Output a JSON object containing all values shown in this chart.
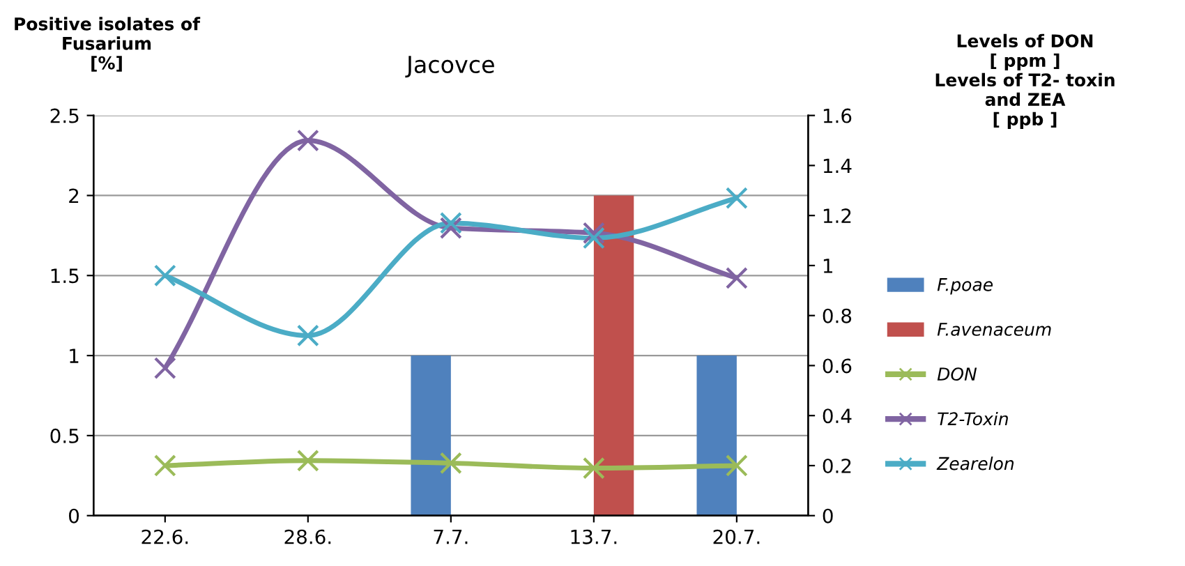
{
  "chart_data": {
    "type": "bar",
    "title": "Jacovce",
    "ylabel": "Positive isolates of\nFusarium\n[%]",
    "y2label": "Levels of DON\n[ ppm ]\nLevels of T2- toxin\nand ZEA\n[ ppb ]",
    "categories": [
      "22.6.",
      "28.6.",
      "7.7.",
      "13.7.",
      "20.7."
    ],
    "series": [
      {
        "name": "F.poae",
        "color": "#4f81bd",
        "values": [
          null,
          null,
          1,
          null,
          1
        ]
      },
      {
        "name": "F.avenaceum",
        "color": "#c0504d",
        "values": [
          null,
          null,
          null,
          2,
          null
        ]
      },
      {
        "name": "DON",
        "type": "line",
        "axis": "y2",
        "color": "#9bbb59",
        "values": [
          0.2,
          0.22,
          0.21,
          0.19,
          0.2
        ]
      },
      {
        "name": "T2-Toxin",
        "type": "line",
        "axis": "y2",
        "color": "#8064a2",
        "values": [
          0.59,
          1.5,
          1.15,
          1.13,
          0.95
        ]
      },
      {
        "name": "Zearelon",
        "type": "line",
        "axis": "y2",
        "color": "#4bacc6",
        "values": [
          0.96,
          0.72,
          1.17,
          1.11,
          1.27
        ]
      }
    ],
    "ylim": [
      0,
      2.5
    ],
    "yticks": [
      0,
      0.5,
      1,
      1.5,
      2,
      2.5
    ],
    "y2lim": [
      0,
      1.6
    ],
    "y2ticks": [
      0,
      0.2,
      0.4,
      0.6,
      0.8,
      1,
      1.2,
      1.4,
      1.6
    ],
    "grid": "y",
    "legend": "right",
    "marker": "cross",
    "line_style": "solid"
  }
}
